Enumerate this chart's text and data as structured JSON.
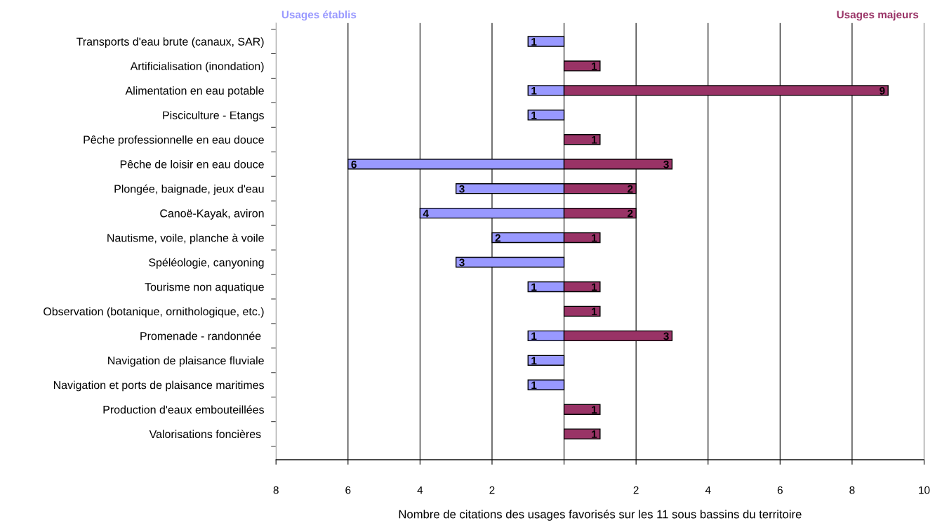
{
  "chart_data": {
    "type": "bar",
    "orientation": "horizontal",
    "xlabel": "Nombre de citations des usages favorisés sur les 11 sous bassins du territoire",
    "categories": [
      "Transports d'eau brute (canaux, SAR)",
      "Artificialisation (inondation)",
      "Alimentation en eau potable",
      "Pisciculture - Etangs",
      "Pêche professionnelle en eau douce",
      "Pêche de loisir en eau douce",
      "Plongée, baignade, jeux d'eau",
      "Canoë-Kayak, aviron",
      "Nautisme, voile, planche à voile",
      "Spéléologie, canyoning",
      "Tourisme non aquatique",
      "Observation (botanique, ornithologique, etc.)",
      "Promenade - randonnée ",
      "Navigation de plaisance fluviale",
      "Navigation et ports de plaisance maritimes",
      "Production d'eaux embouteillées",
      "Valorisations foncières "
    ],
    "series": [
      {
        "name": "Usages établis",
        "color": "#9999ff",
        "values": [
          1,
          null,
          1,
          1,
          null,
          6,
          3,
          4,
          2,
          3,
          1,
          null,
          1,
          1,
          1,
          null,
          null
        ],
        "base": [
          -1,
          null,
          -1,
          -1,
          null,
          -6,
          -3,
          -4,
          -2,
          -3,
          -1,
          null,
          -1,
          -1,
          -1,
          null,
          null
        ],
        "value_labels": [
          "1",
          null,
          "1",
          "1",
          null,
          "6",
          "3",
          "4",
          "2",
          "3",
          "1",
          null,
          "1",
          "1",
          "1",
          null,
          null
        ]
      },
      {
        "name": "Usages majeurs",
        "color": "#993366",
        "values": [
          null,
          1,
          9,
          null,
          1,
          3,
          2,
          2,
          1,
          null,
          1,
          1,
          3,
          null,
          null,
          1,
          1
        ],
        "value_labels": [
          null,
          "1",
          "9",
          null,
          "1",
          "3",
          "2",
          "2",
          "1",
          null,
          "1",
          "1",
          "3",
          null,
          null,
          "1",
          "1"
        ]
      }
    ],
    "xlim": [
      -8,
      10
    ],
    "xticks": [
      {
        "value": -8,
        "label": "8"
      },
      {
        "value": -6,
        "label": "6"
      },
      {
        "value": -4,
        "label": "4"
      },
      {
        "value": -2,
        "label": "2"
      },
      {
        "value": 0,
        "label": null
      },
      {
        "value": 2,
        "label": "2"
      },
      4,
      6,
      8,
      10
    ],
    "grid": "x",
    "legend": false
  }
}
